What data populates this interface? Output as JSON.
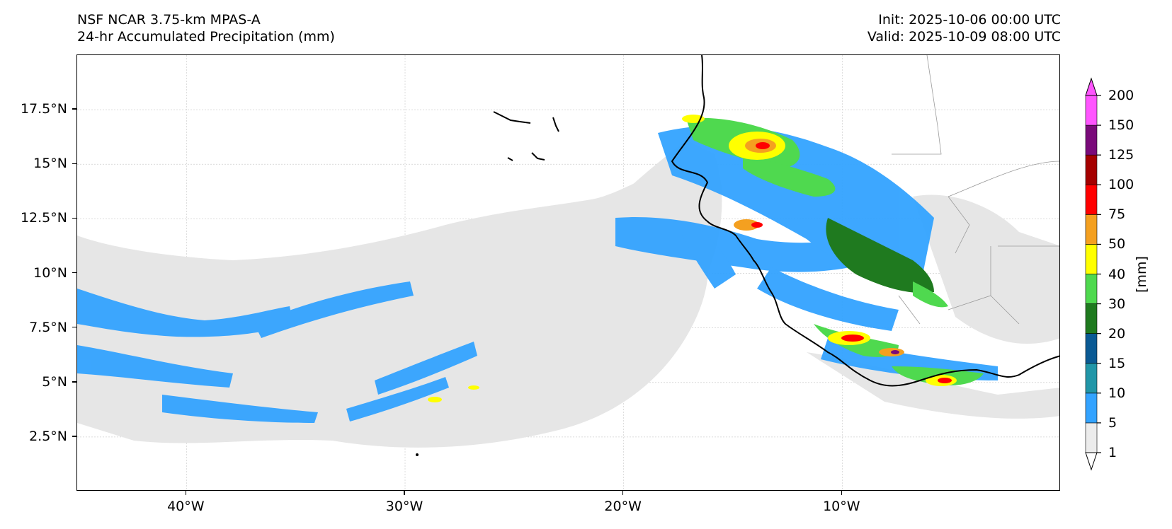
{
  "header": {
    "title_line1": "NSF NCAR 3.75-km MPAS-A",
    "title_line2": "24-hr Accumulated Precipitation (mm)",
    "init": "Init: 2025-10-06 00:00 UTC",
    "valid": "Valid: 2025-10-09 08:00 UTC"
  },
  "map": {
    "lon_range": [
      -45,
      0
    ],
    "lat_range": [
      0,
      20
    ],
    "lon_ticks": [
      {
        "value": -40,
        "label": "40°W"
      },
      {
        "value": -30,
        "label": "30°W"
      },
      {
        "value": -20,
        "label": "20°W"
      },
      {
        "value": -10,
        "label": "10°W"
      }
    ],
    "lat_ticks": [
      {
        "value": 2.5,
        "label": "2.5°N"
      },
      {
        "value": 5,
        "label": "5°N"
      },
      {
        "value": 7.5,
        "label": "7.5°N"
      },
      {
        "value": 10,
        "label": "10°N"
      },
      {
        "value": 12.5,
        "label": "12.5°N"
      },
      {
        "value": 15,
        "label": "15°N"
      },
      {
        "value": 17.5,
        "label": "17.5°N"
      }
    ],
    "gridlines": true
  },
  "colorbar": {
    "unit_label": "[mm]",
    "levels": [
      "1",
      "5",
      "10",
      "15",
      "20",
      "30",
      "40",
      "50",
      "75",
      "100",
      "125",
      "150",
      "200"
    ],
    "colors": [
      "#ececec",
      "#33a3ff",
      "#2196a8",
      "#0a5a94",
      "#1f7a1f",
      "#4fd94f",
      "#ffff00",
      "#f4a020",
      "#ff0000",
      "#a50000",
      "#7a0a7a",
      "#ff55ff"
    ]
  }
}
